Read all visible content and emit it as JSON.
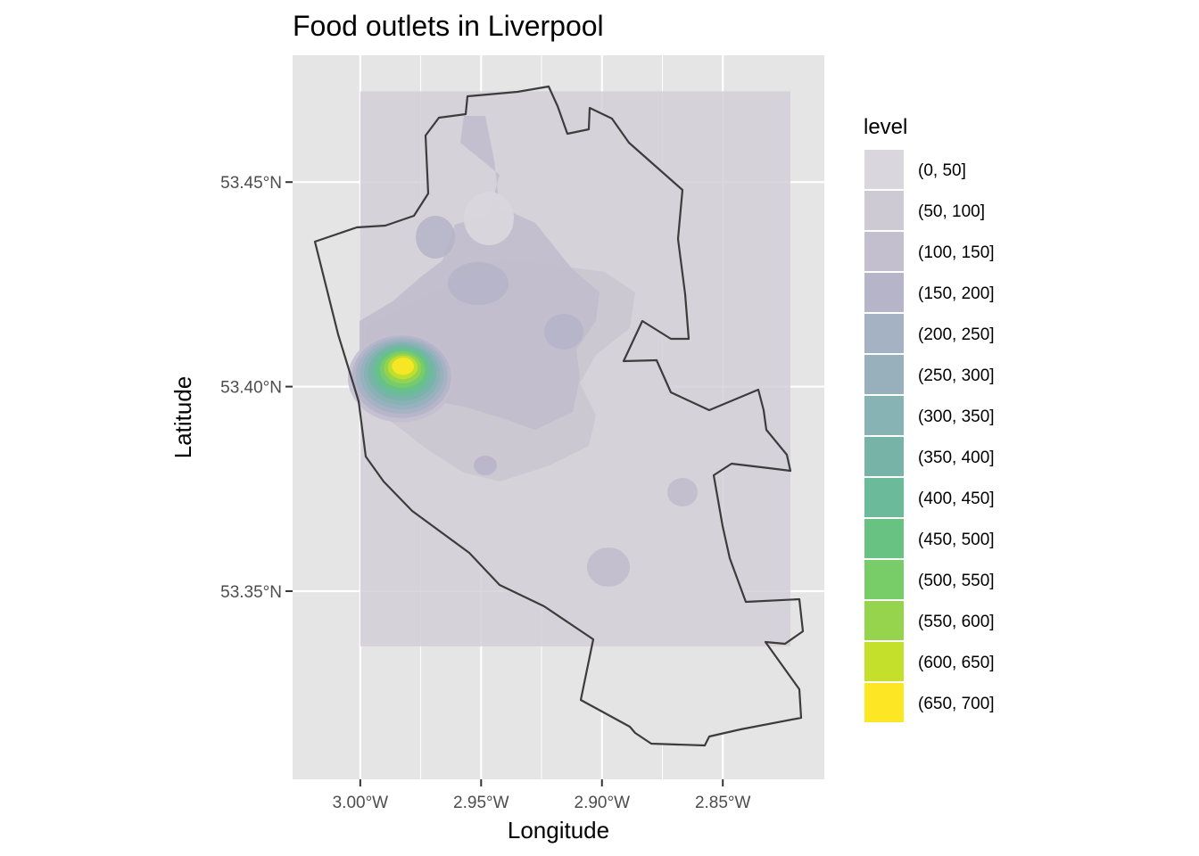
{
  "chart_data": {
    "type": "heatmap",
    "title": "Food outlets in Liverpool",
    "xlabel": "Longitude",
    "ylabel": "Latitude",
    "x_range": [
      -3.028,
      -2.808
    ],
    "y_range": [
      53.304,
      53.481
    ],
    "x_ticks": [
      {
        "value": -3.0,
        "label": "3.00°W"
      },
      {
        "value": -2.95,
        "label": "2.95°W"
      },
      {
        "value": -2.9,
        "label": "2.90°W"
      },
      {
        "value": -2.85,
        "label": "2.85°W"
      }
    ],
    "y_ticks": [
      {
        "value": 53.35,
        "label": "53.35°N"
      },
      {
        "value": 53.4,
        "label": "53.40°N"
      },
      {
        "value": 53.45,
        "label": "53.45°N"
      }
    ],
    "density_extent": {
      "lon": [
        -3.0,
        -2.822
      ],
      "lat": [
        53.3365,
        53.4722
      ]
    },
    "grid": true,
    "legend": {
      "title": "level",
      "placement": "right",
      "entries": [
        {
          "label": "(0, 50]",
          "color": "#d9d6dd"
        },
        {
          "label": "(50, 100]",
          "color": "#cecad3"
        },
        {
          "label": "(100, 150]",
          "color": "#c3bfcf"
        },
        {
          "label": "(150, 200]",
          "color": "#b5b4c8"
        },
        {
          "label": "(200, 250]",
          "color": "#a4b2c4"
        },
        {
          "label": "(250, 300]",
          "color": "#97b0bc"
        },
        {
          "label": "(300, 350]",
          "color": "#87b3b4"
        },
        {
          "label": "(350, 400]",
          "color": "#78b3a7"
        },
        {
          "label": "(400, 450]",
          "color": "#6bbb9b"
        },
        {
          "label": "(450, 500]",
          "color": "#68c383"
        },
        {
          "label": "(500, 550]",
          "color": "#78cd69"
        },
        {
          "label": "(550, 600]",
          "color": "#97d44d"
        },
        {
          "label": "(600, 650]",
          "color": "#c4e02b"
        },
        {
          "label": "(650, 700]",
          "color": "#fde725"
        }
      ]
    },
    "hotspot": {
      "lon": -2.983,
      "lat": 53.405,
      "level": "(650, 700]"
    }
  },
  "colors": {
    "panel_background": "#e5e5e5",
    "grid_line": "#ffffff",
    "boundary_stroke": "#3c3c3c",
    "boundary_fill": "#e4e4e4"
  }
}
